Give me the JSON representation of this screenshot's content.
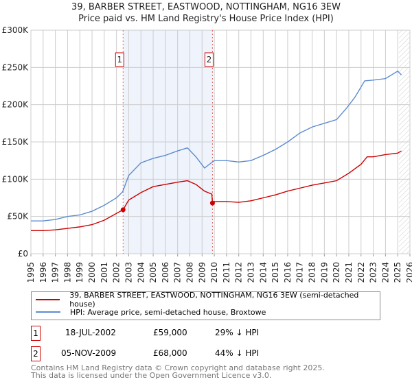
{
  "header": {
    "title": "39, BARBER STREET, EASTWOOD, NOTTINGHAM, NG16 3EW",
    "subtitle": "Price paid vs. HM Land Registry's House Price Index (HPI)"
  },
  "chart_data": {
    "type": "line",
    "title": "39, BARBER STREET, EASTWOOD, NOTTINGHAM, NG16 3EW",
    "subtitle": "Price paid vs. HM Land Registry's House Price Index (HPI)",
    "xlim": [
      1995,
      2026
    ],
    "ylim": [
      0,
      300000
    ],
    "x_ticks": [
      "1995",
      "1996",
      "1997",
      "1998",
      "1999",
      "2000",
      "2001",
      "2002",
      "2003",
      "2004",
      "2005",
      "2006",
      "2007",
      "2008",
      "2009",
      "2010",
      "2011",
      "2012",
      "2013",
      "2014",
      "2015",
      "2016",
      "2017",
      "2018",
      "2019",
      "2020",
      "2021",
      "2022",
      "2023",
      "2024",
      "2025",
      "2026"
    ],
    "y_ticks": [
      {
        "v": 0,
        "label": "£0"
      },
      {
        "v": 50000,
        "label": "£50K"
      },
      {
        "v": 100000,
        "label": "£100K"
      },
      {
        "v": 150000,
        "label": "£150K"
      },
      {
        "v": 200000,
        "label": "£200K"
      },
      {
        "v": 250000,
        "label": "£250K"
      },
      {
        "v": 300000,
        "label": "£300K"
      }
    ],
    "grid": true,
    "series": [
      {
        "name": "39, BARBER STREET, EASTWOOD, NOTTINGHAM, NG16 3EW (semi-detached house)",
        "color": "#cc0000",
        "points": [
          [
            1995,
            31000
          ],
          [
            1996,
            31000
          ],
          [
            1997,
            32000
          ],
          [
            1998,
            34000
          ],
          [
            1999,
            36000
          ],
          [
            2000,
            39000
          ],
          [
            2001,
            45000
          ],
          [
            2002.54,
            59000
          ],
          [
            2003,
            72000
          ],
          [
            2004,
            82000
          ],
          [
            2005,
            90000
          ],
          [
            2006,
            93000
          ],
          [
            2007,
            96000
          ],
          [
            2007.8,
            98000
          ],
          [
            2008.5,
            93000
          ],
          [
            2009.2,
            84000
          ],
          [
            2009.8,
            80000
          ],
          [
            2009.85,
            68000
          ],
          [
            2010,
            70000
          ],
          [
            2011,
            70000
          ],
          [
            2012,
            69000
          ],
          [
            2013,
            71000
          ],
          [
            2014,
            75000
          ],
          [
            2015,
            79000
          ],
          [
            2016,
            84000
          ],
          [
            2017,
            88000
          ],
          [
            2018,
            92000
          ],
          [
            2019,
            95000
          ],
          [
            2020,
            98000
          ],
          [
            2021,
            108000
          ],
          [
            2022,
            120000
          ],
          [
            2022.5,
            130000
          ],
          [
            2023,
            130000
          ],
          [
            2024,
            133000
          ],
          [
            2025,
            135000
          ],
          [
            2025.3,
            138000
          ]
        ]
      },
      {
        "name": "HPI: Average price, semi-detached house, Broxtowe",
        "color": "#5b8bd0",
        "points": [
          [
            1995,
            44000
          ],
          [
            1996,
            44000
          ],
          [
            1997,
            46000
          ],
          [
            1998,
            50000
          ],
          [
            1999,
            52000
          ],
          [
            2000,
            57000
          ],
          [
            2001,
            65000
          ],
          [
            2002,
            75000
          ],
          [
            2002.5,
            83000
          ],
          [
            2003,
            105000
          ],
          [
            2004,
            122000
          ],
          [
            2005,
            128000
          ],
          [
            2006,
            132000
          ],
          [
            2007,
            138000
          ],
          [
            2007.8,
            142000
          ],
          [
            2008.5,
            130000
          ],
          [
            2009.2,
            115000
          ],
          [
            2010,
            125000
          ],
          [
            2011,
            125000
          ],
          [
            2012,
            123000
          ],
          [
            2013,
            125000
          ],
          [
            2014,
            132000
          ],
          [
            2015,
            140000
          ],
          [
            2016,
            150000
          ],
          [
            2017,
            162000
          ],
          [
            2018,
            170000
          ],
          [
            2019,
            175000
          ],
          [
            2020,
            180000
          ],
          [
            2020.8,
            195000
          ],
          [
            2021.5,
            210000
          ],
          [
            2022.3,
            232000
          ],
          [
            2023,
            233000
          ],
          [
            2024,
            235000
          ],
          [
            2025,
            245000
          ],
          [
            2025.3,
            240000
          ]
        ]
      }
    ],
    "sales": [
      {
        "label": "1",
        "x": 2002.54,
        "value": 59000,
        "date": "18-JUL-2002",
        "price": "£59,000",
        "hpi_diff": "29% ↓ HPI"
      },
      {
        "label": "2",
        "x": 2009.85,
        "value": 68000,
        "date": "05-NOV-2009",
        "price": "£68,000",
        "hpi_diff": "44% ↓ HPI"
      }
    ],
    "shaded_range": [
      2002.54,
      2009.85
    ],
    "forecast_from": 2025.1,
    "legend_placement": "below"
  },
  "footer": {
    "line1": "Contains HM Land Registry data © Crown copyright and database right 2025.",
    "line2": "This data is licensed under the Open Government Licence v3.0."
  }
}
